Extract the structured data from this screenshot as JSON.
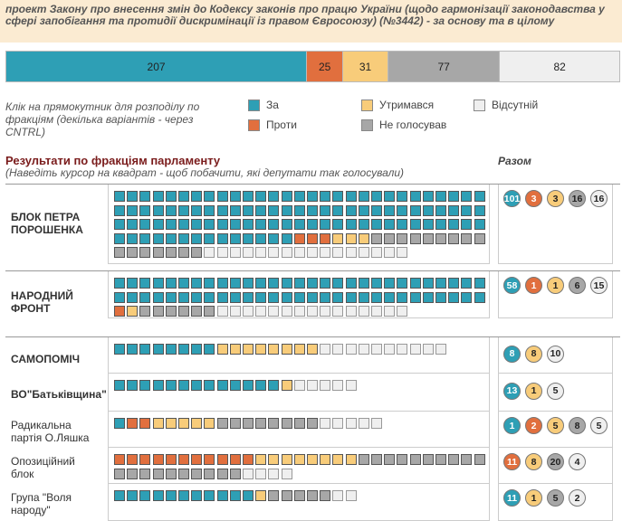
{
  "header": {
    "title": "проект Закону про внесення змін до Кодексу законів про працю України (щодо гармонізації законодавства у сфері запобігання та протидії дискримінації із правом Євросоюзу) (№3442) - за основу та в цілому"
  },
  "colors": {
    "za": "#2e9fb5",
    "proty": "#e16f3e",
    "utrym": "#f8cc7a",
    "ne": "#a7a7a7",
    "vids": "#efefef"
  },
  "summary": [
    {
      "key": "za",
      "value": "207",
      "count": 207
    },
    {
      "key": "proty",
      "value": "25",
      "count": 25
    },
    {
      "key": "utrym",
      "value": "31",
      "count": 31
    },
    {
      "key": "ne",
      "value": "77",
      "count": 77
    },
    {
      "key": "vids",
      "value": "82",
      "count": 82
    }
  ],
  "hint": "Клік на прямокутник для розподілу по фракціям (декілька варіантів - через CNTRL)",
  "legend": {
    "za": "За",
    "proty": "Проти",
    "utrym": "Утримався",
    "ne": "Не голосував",
    "vids": "Відсутній"
  },
  "section": {
    "title": "Результати по фракціям парламенту",
    "subtitle": "(Наведіть курсор на квадрат - щоб побачити, які депутати так голосували)",
    "totals_title": "Разом"
  },
  "factions": [
    {
      "name": "БЛОК ПЕТРА ПОРОШЕНКА",
      "lines": [
        "БЛОК ПЕТРА",
        "ПОРОШЕНКА"
      ],
      "bold": true,
      "counts": {
        "za": 101,
        "proty": 3,
        "utrym": 3,
        "ne": 16,
        "vids": 16
      },
      "totals": [
        {
          "key": "za",
          "label": "101"
        },
        {
          "key": "proty",
          "label": "3"
        },
        {
          "key": "utrym",
          "label": "3"
        },
        {
          "key": "ne",
          "label": "16"
        },
        {
          "key": "vids",
          "label": "16"
        }
      ]
    },
    {
      "name": "НАРОДНИЙ ФРОНТ",
      "lines": [
        "НАРОДНИЙ",
        "ФРОНТ"
      ],
      "bold": true,
      "counts": {
        "za": 58,
        "proty": 1,
        "utrym": 1,
        "ne": 6,
        "vids": 15
      },
      "totals": [
        {
          "key": "za",
          "label": "58"
        },
        {
          "key": "proty",
          "label": "1"
        },
        {
          "key": "utrym",
          "label": "1"
        },
        {
          "key": "ne",
          "label": "6"
        },
        {
          "key": "vids",
          "label": "15"
        }
      ]
    },
    {
      "name": "САМОПОМІЧ",
      "lines": [
        "САМОПОМІЧ"
      ],
      "bold": true,
      "counts": {
        "za": 8,
        "proty": 0,
        "utrym": 8,
        "ne": 0,
        "vids": 10
      },
      "totals": [
        {
          "key": "za",
          "label": "8"
        },
        {
          "key": "utrym",
          "label": "8"
        },
        {
          "key": "vids",
          "label": "10"
        }
      ]
    },
    {
      "name": "ВО\"Батьківщина\"",
      "lines": [
        "ВО\"Батьківщина\""
      ],
      "bold": true,
      "counts": {
        "za": 13,
        "proty": 0,
        "utrym": 1,
        "ne": 0,
        "vids": 5
      },
      "totals": [
        {
          "key": "za",
          "label": "13"
        },
        {
          "key": "utrym",
          "label": "1"
        },
        {
          "key": "vids",
          "label": "5"
        }
      ]
    },
    {
      "name": "Радикальна партія О.Ляшка",
      "lines": [
        "Радикальна",
        "партія О.Ляшка"
      ],
      "bold": false,
      "counts": {
        "za": 1,
        "proty": 2,
        "utrym": 5,
        "ne": 8,
        "vids": 5
      },
      "totals": [
        {
          "key": "za",
          "label": "1"
        },
        {
          "key": "proty",
          "label": "2"
        },
        {
          "key": "utrym",
          "label": "5"
        },
        {
          "key": "ne",
          "label": "8"
        },
        {
          "key": "vids",
          "label": "5"
        }
      ]
    },
    {
      "name": "Опозиційний блок",
      "lines": [
        "Опозиційний",
        "блок"
      ],
      "bold": false,
      "counts": {
        "za": 0,
        "proty": 11,
        "utrym": 8,
        "ne": 20,
        "vids": 4
      },
      "totals": [
        {
          "key": "proty",
          "label": "11"
        },
        {
          "key": "utrym",
          "label": "8"
        },
        {
          "key": "ne",
          "label": "20"
        },
        {
          "key": "vids",
          "label": "4"
        }
      ]
    },
    {
      "name": "Група \"Воля народу\"",
      "lines": [
        "Група \"Воля",
        "народу\""
      ],
      "bold": false,
      "counts": {
        "za": 11,
        "proty": 0,
        "utrym": 1,
        "ne": 5,
        "vids": 2
      },
      "totals": [
        {
          "key": "za",
          "label": "11"
        },
        {
          "key": "utrym",
          "label": "1"
        },
        {
          "key": "ne",
          "label": "5"
        },
        {
          "key": "vids",
          "label": "2"
        }
      ]
    }
  ]
}
